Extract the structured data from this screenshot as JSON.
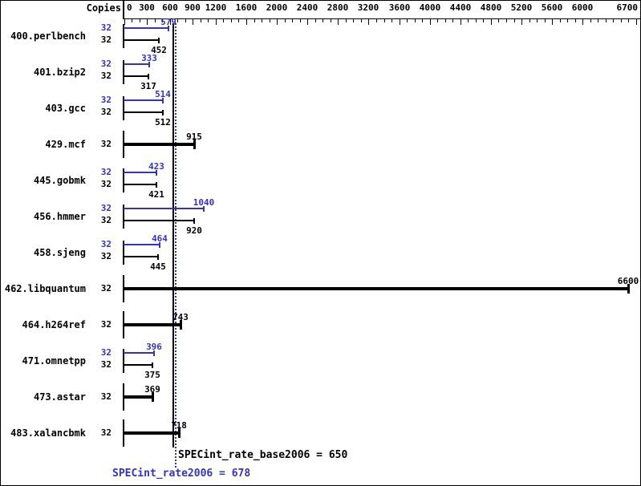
{
  "chart_data": {
    "type": "bar",
    "orientation": "horizontal",
    "copies_header": "Copies",
    "x_axis": {
      "min": 0,
      "max": 6700,
      "minor_tick_step": 100,
      "labeled_ticks": [
        0,
        300,
        600,
        900,
        1200,
        1600,
        2000,
        2400,
        2800,
        3200,
        3600,
        4000,
        4400,
        4800,
        5200,
        5600,
        6000,
        6700
      ]
    },
    "series_colors": {
      "peak": "#3333bb",
      "base": "#000000"
    },
    "benchmarks": [
      {
        "name": "400.perlbench",
        "copies": 32,
        "peak": 579,
        "base": 452,
        "single_bar": false
      },
      {
        "name": "401.bzip2",
        "copies": 32,
        "peak": 333,
        "base": 317,
        "single_bar": false
      },
      {
        "name": "403.gcc",
        "copies": 32,
        "peak": 514,
        "base": 512,
        "single_bar": false
      },
      {
        "name": "429.mcf",
        "copies": 32,
        "peak": 915,
        "base": 915,
        "single_bar": true
      },
      {
        "name": "445.gobmk",
        "copies": 32,
        "peak": 423,
        "base": 421,
        "single_bar": false
      },
      {
        "name": "456.hmmer",
        "copies": 32,
        "peak": 1040,
        "base": 920,
        "single_bar": false
      },
      {
        "name": "458.sjeng",
        "copies": 32,
        "peak": 464,
        "base": 445,
        "single_bar": false
      },
      {
        "name": "462.libquantum",
        "copies": 32,
        "peak": 6600,
        "base": 6600,
        "single_bar": true
      },
      {
        "name": "464.h264ref",
        "copies": 32,
        "peak": 743,
        "base": 743,
        "single_bar": true
      },
      {
        "name": "471.omnetpp",
        "copies": 32,
        "peak": 396,
        "base": 375,
        "single_bar": false
      },
      {
        "name": "473.astar",
        "copies": 32,
        "peak": 369,
        "base": 369,
        "single_bar": true
      },
      {
        "name": "483.xalancbmk",
        "copies": 32,
        "peak": 718,
        "base": 718,
        "single_bar": true
      }
    ],
    "reference_lines": [
      {
        "name": "base",
        "label": "SPECint_rate_base2006 = 650",
        "value": 650,
        "color": "#000000",
        "style": "solid"
      },
      {
        "name": "peak",
        "label": "SPECint_rate2006 = 678",
        "value": 678,
        "color": "#3333bb",
        "style": "dotted"
      }
    ]
  }
}
